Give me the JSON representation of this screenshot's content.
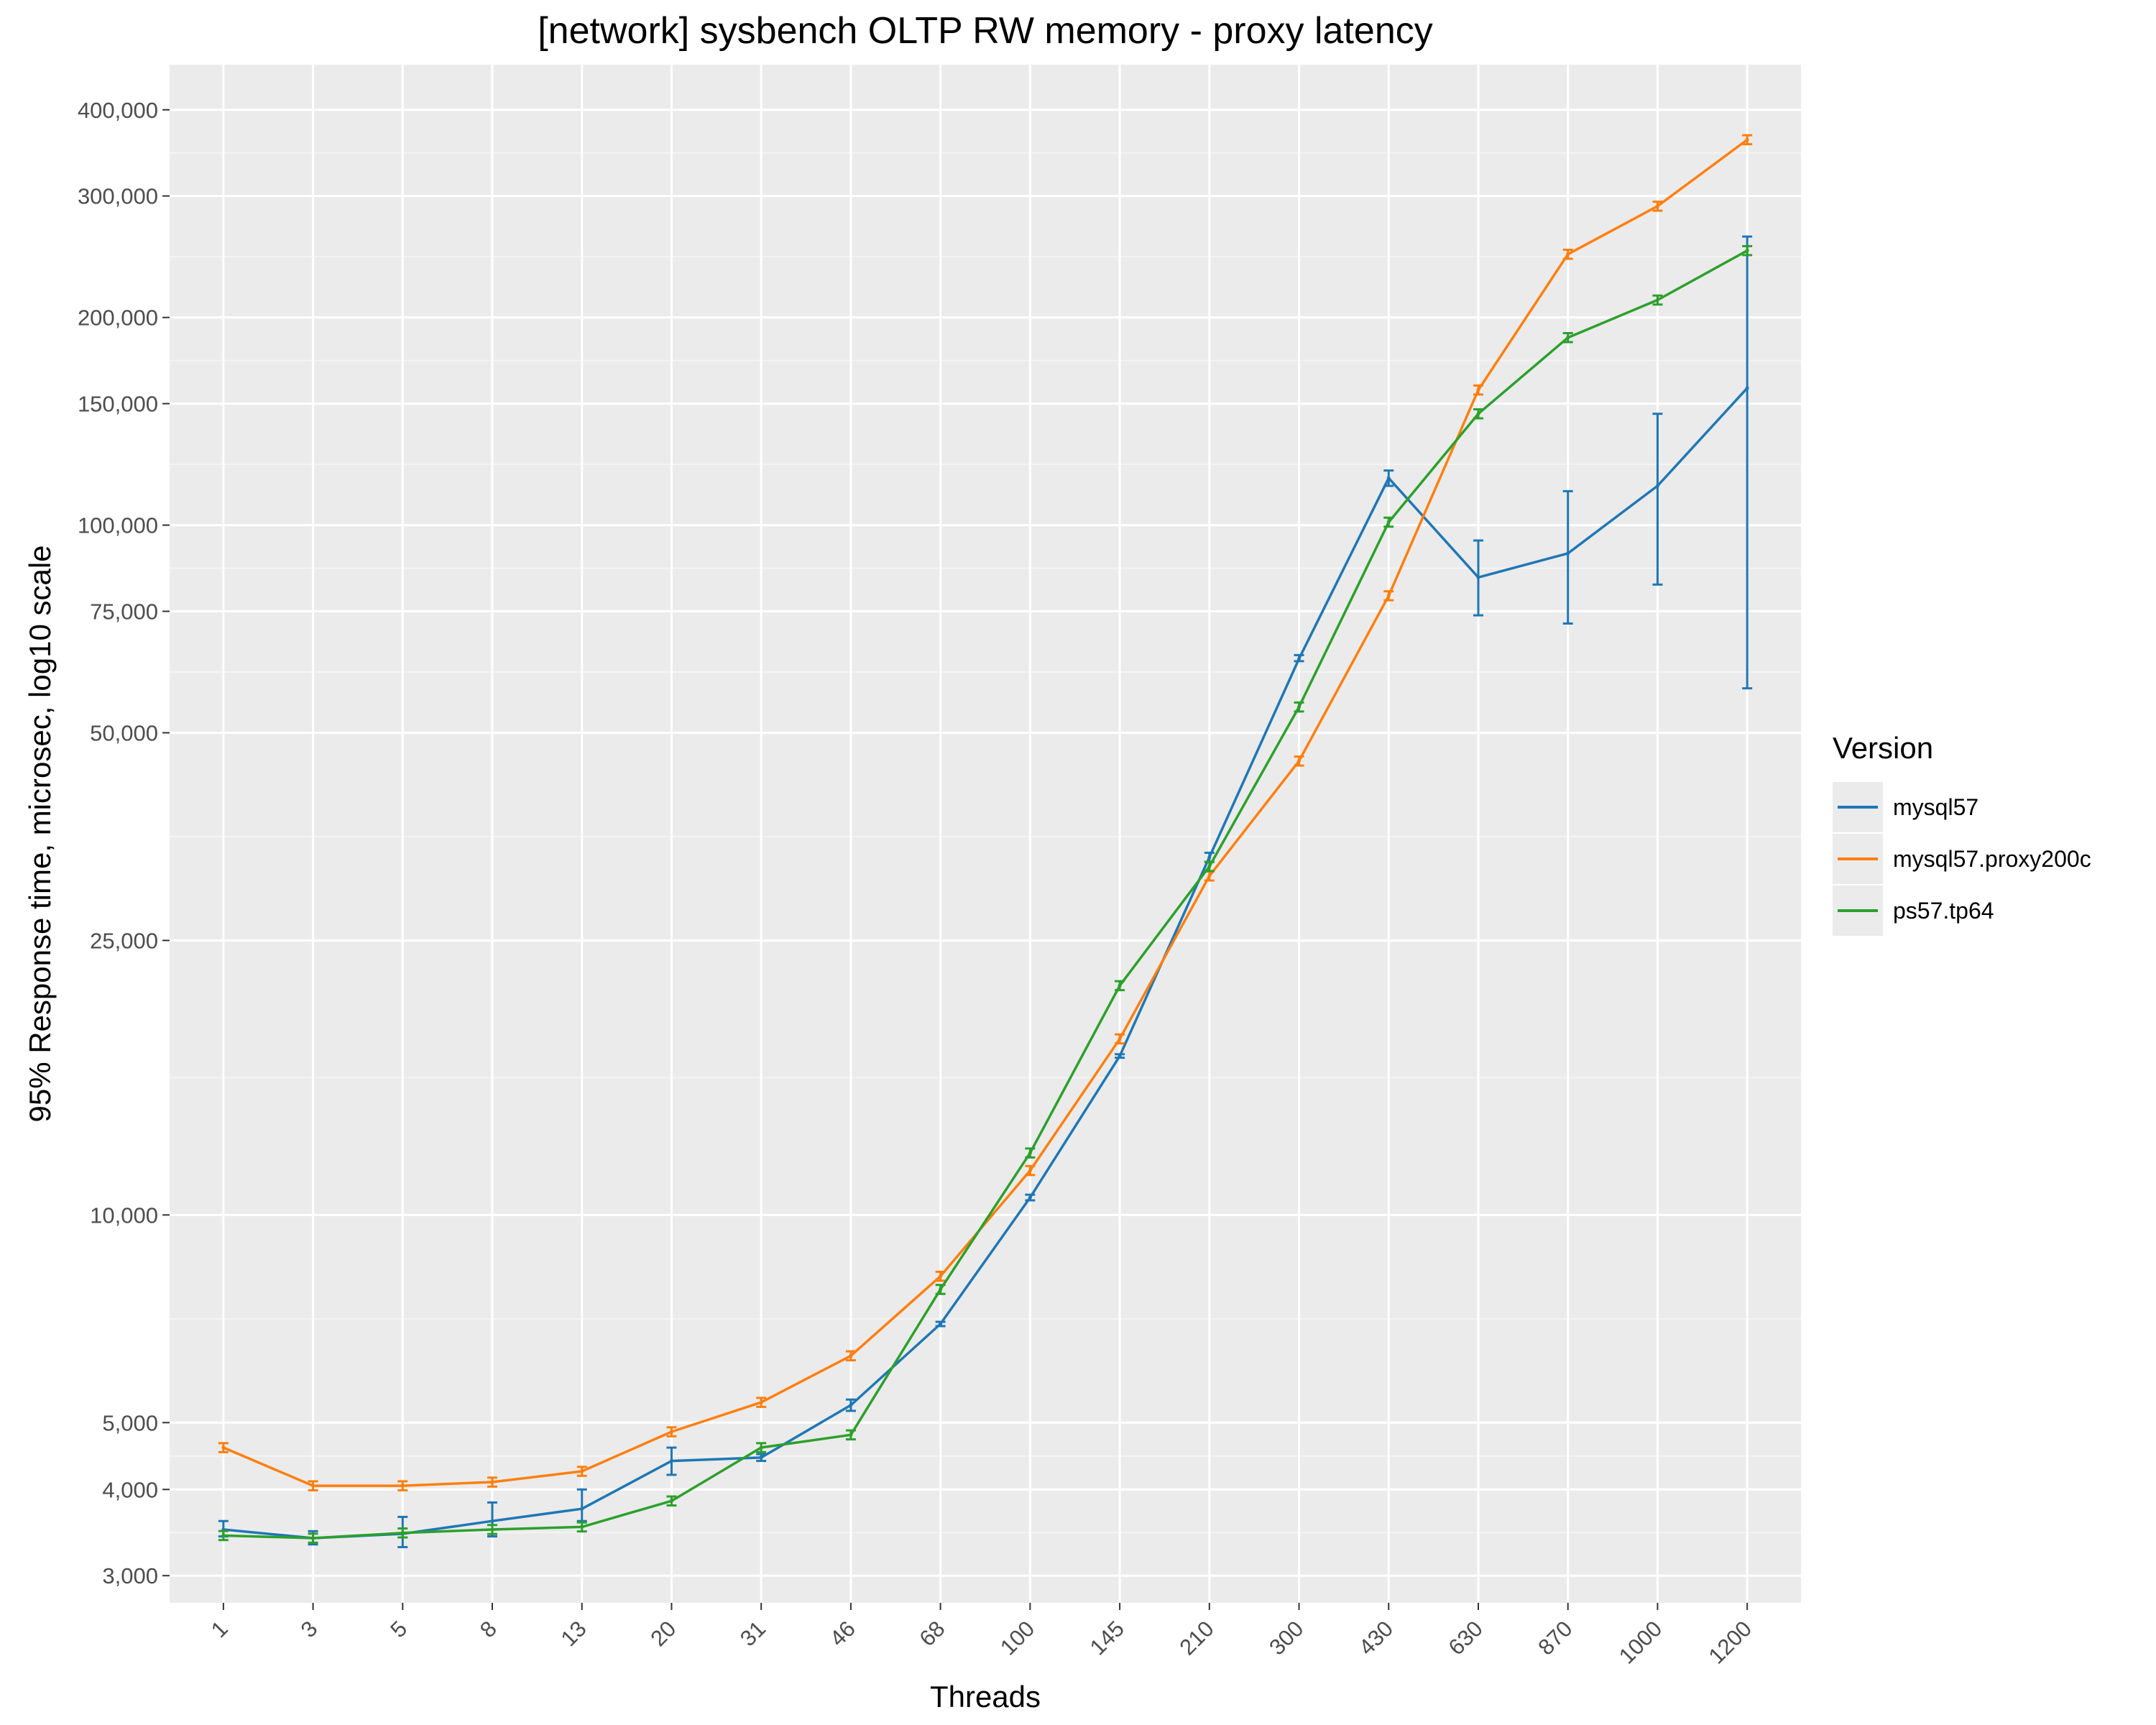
{
  "chart_data": {
    "type": "line",
    "title": "[network] sysbench OLTP RW memory - proxy latency",
    "xlabel": "Threads",
    "ylabel": "95% Response time, microsec, log10 scale",
    "x_scale": "categorical",
    "y_scale": "log10",
    "categories": [
      "1",
      "3",
      "5",
      "8",
      "13",
      "20",
      "31",
      "46",
      "68",
      "100",
      "145",
      "210",
      "300",
      "430",
      "630",
      "870",
      "1000",
      "1200"
    ],
    "yticks": [
      3000,
      4000,
      5000,
      10000,
      25000,
      50000,
      75000,
      100000,
      150000,
      200000,
      300000,
      400000
    ],
    "ytick_labels": [
      "3,000",
      "4,000",
      "5,000",
      "10,000",
      "25,000",
      "50,000",
      "75,000",
      "100,000",
      "150,000",
      "200,000",
      "300,000",
      "400,000"
    ],
    "ylim": [
      2740,
      465000
    ],
    "grid": true,
    "legend": {
      "title": "Version",
      "position": "right"
    },
    "series": [
      {
        "name": "mysql57",
        "color": "#1f77b4",
        "values": [
          3500,
          3400,
          3450,
          3600,
          3750,
          4400,
          4450,
          5300,
          6950,
          10600,
          17000,
          33000,
          64000,
          117000,
          84000,
          91000,
          114000,
          158000
        ],
        "err_low": [
          3420,
          3330,
          3300,
          3420,
          3600,
          4200,
          4400,
          5200,
          6900,
          10500,
          16900,
          32500,
          63500,
          114000,
          74000,
          72000,
          82000,
          58000
        ],
        "err_high": [
          3600,
          3480,
          3650,
          3830,
          4000,
          4600,
          4500,
          5400,
          7000,
          10700,
          17100,
          33500,
          64800,
          120000,
          95000,
          112000,
          145000,
          262000
        ]
      },
      {
        "name": "mysql57.proxy200c",
        "color": "#ff7f0e",
        "values": [
          4600,
          4050,
          4050,
          4100,
          4250,
          4850,
          5350,
          6250,
          8150,
          11600,
          18000,
          31000,
          45500,
          79000,
          157000,
          247000,
          290000,
          362000
        ]
      },
      {
        "name": "ps57.tp64",
        "color": "#2ca02c",
        "values": [
          3430,
          3400,
          3460,
          3500,
          3530,
          3850,
          4600,
          4800,
          7800,
          12300,
          21500,
          32000,
          54500,
          101000,
          145000,
          187000,
          212000,
          250000
        ]
      }
    ]
  }
}
